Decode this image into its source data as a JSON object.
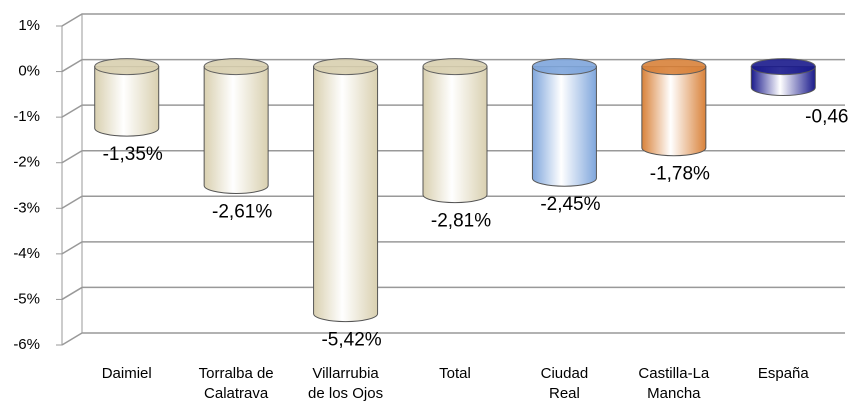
{
  "chart_data": {
    "type": "bar3d",
    "categories": [
      "Daimiel",
      "Torralba de\nCalatrava",
      "Villarrubia\nde los Ojos",
      "Total",
      "Ciudad\nReal",
      "Castilla-La\nMancha",
      "España"
    ],
    "values": [
      -1.35,
      -2.61,
      -5.42,
      -2.81,
      -2.45,
      -1.78,
      -0.46
    ],
    "value_labels": [
      "-1,35%",
      "-2,61%",
      "-5,42%",
      "-2,81%",
      "-2,45%",
      "-1,78%",
      "-0,46%"
    ],
    "colors": [
      "#d9d0b0",
      "#d9d0b0",
      "#d9d0b0",
      "#d9d0b0",
      "#7fa6dc",
      "#d9823a",
      "#1a1a8c"
    ],
    "ylim": [
      -6,
      1
    ],
    "yticks": [
      {
        "value": 1,
        "label": "1%"
      },
      {
        "value": 0,
        "label": "0%"
      },
      {
        "value": -1,
        "label": "-1%"
      },
      {
        "value": -2,
        "label": "-2%"
      },
      {
        "value": -3,
        "label": "-3%"
      },
      {
        "value": -4,
        "label": "-4%"
      },
      {
        "value": -5,
        "label": "-5%"
      },
      {
        "value": -6,
        "label": "-6%"
      }
    ],
    "grid": true
  }
}
